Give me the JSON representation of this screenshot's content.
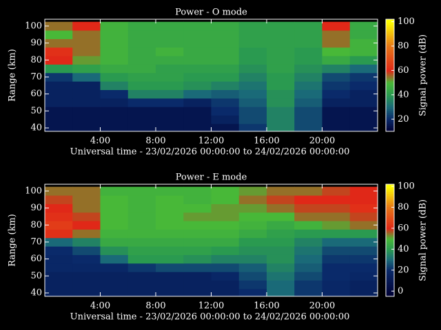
{
  "chart_data": [
    {
      "type": "heatmap",
      "title": "Power - O mode",
      "x_label": "Universal time - 23/02/2026 00:00:00 to 24/02/2026 00:00:00",
      "y_label": "Range (km)",
      "x": [
        1,
        3,
        5,
        7,
        9,
        11,
        13,
        15,
        17,
        19,
        21,
        23
      ],
      "y": [
        40,
        45,
        50,
        55,
        60,
        65,
        70,
        75,
        80,
        85,
        90,
        95,
        100
      ],
      "z": [
        [
          15,
          15,
          15,
          15,
          15,
          15,
          15,
          22,
          35,
          25,
          15,
          15
        ],
        [
          15,
          15,
          15,
          15,
          15,
          15,
          18,
          25,
          35,
          25,
          15,
          15
        ],
        [
          15,
          15,
          15,
          15,
          15,
          15,
          20,
          25,
          35,
          25,
          15,
          15
        ],
        [
          18,
          18,
          18,
          20,
          20,
          18,
          22,
          28,
          38,
          28,
          18,
          18
        ],
        [
          18,
          18,
          20,
          35,
          35,
          30,
          28,
          30,
          38,
          30,
          20,
          18
        ],
        [
          18,
          18,
          35,
          40,
          40,
          38,
          35,
          32,
          40,
          32,
          22,
          20
        ],
        [
          22,
          30,
          40,
          42,
          42,
          40,
          40,
          35,
          40,
          35,
          25,
          22
        ],
        [
          40,
          42,
          45,
          45,
          42,
          42,
          42,
          38,
          42,
          38,
          35,
          30
        ],
        [
          60,
          52,
          48,
          45,
          45,
          45,
          45,
          40,
          42,
          40,
          45,
          40
        ],
        [
          62,
          55,
          48,
          45,
          48,
          45,
          45,
          40,
          42,
          40,
          50,
          48
        ],
        [
          55,
          55,
          48,
          45,
          45,
          45,
          45,
          42,
          42,
          42,
          55,
          48
        ],
        [
          50,
          55,
          48,
          45,
          45,
          45,
          45,
          42,
          42,
          42,
          55,
          45
        ],
        [
          55,
          60,
          48,
          45,
          45,
          45,
          45,
          42,
          42,
          42,
          60,
          45
        ]
      ],
      "xlim": [
        0,
        24
      ],
      "ylim": [
        38,
        104
      ],
      "xticks": [
        {
          "value": 4,
          "label": "4:00"
        },
        {
          "value": 8,
          "label": "8:00"
        },
        {
          "value": 12,
          "label": "12:00"
        },
        {
          "value": 16,
          "label": "16:00"
        },
        {
          "value": 20,
          "label": "20:00"
        }
      ],
      "yticks": [
        40,
        50,
        60,
        70,
        80,
        90,
        100
      ],
      "colorbar": {
        "label": "Signal power (dB)",
        "lim": [
          10,
          102
        ],
        "ticks": [
          20,
          40,
          60,
          80,
          100
        ]
      },
      "colorscale": [
        [
          10,
          "#000033"
        ],
        [
          20,
          "#0a2a6a"
        ],
        [
          30,
          "#1a6a78"
        ],
        [
          40,
          "#2a9a50"
        ],
        [
          50,
          "#48b838"
        ],
        [
          60,
          "#e02818"
        ],
        [
          80,
          "#e87818"
        ],
        [
          100,
          "#ffff00"
        ]
      ]
    },
    {
      "type": "heatmap",
      "title": "Power - E mode",
      "x_label": "Universal time - 23/02/2026 00:00:00 to 24/02/2026 00:00:00",
      "y_label": "Range (km)",
      "x": [
        1,
        3,
        5,
        7,
        9,
        11,
        13,
        15,
        17,
        19,
        21,
        23
      ],
      "y": [
        40,
        45,
        50,
        55,
        60,
        65,
        70,
        75,
        80,
        85,
        90,
        95,
        100
      ],
      "z": [
        [
          15,
          15,
          15,
          15,
          15,
          15,
          15,
          20,
          30,
          22,
          18,
          15
        ],
        [
          15,
          15,
          15,
          15,
          15,
          15,
          15,
          22,
          30,
          22,
          18,
          15
        ],
        [
          15,
          15,
          15,
          15,
          15,
          15,
          18,
          25,
          32,
          25,
          20,
          18
        ],
        [
          18,
          18,
          18,
          22,
          25,
          25,
          25,
          28,
          35,
          28,
          20,
          20
        ],
        [
          18,
          20,
          30,
          40,
          40,
          38,
          35,
          35,
          38,
          30,
          22,
          22
        ],
        [
          20,
          25,
          38,
          42,
          42,
          42,
          40,
          38,
          38,
          32,
          25,
          25
        ],
        [
          30,
          35,
          45,
          45,
          45,
          45,
          45,
          40,
          40,
          35,
          30,
          30
        ],
        [
          62,
          55,
          48,
          48,
          48,
          48,
          48,
          45,
          42,
          40,
          40,
          40
        ],
        [
          65,
          60,
          50,
          48,
          50,
          50,
          50,
          48,
          45,
          48,
          52,
          55
        ],
        [
          62,
          58,
          50,
          48,
          50,
          52,
          52,
          50,
          50,
          55,
          55,
          58
        ],
        [
          60,
          55,
          50,
          48,
          50,
          50,
          52,
          52,
          55,
          58,
          58,
          62
        ],
        [
          58,
          55,
          50,
          48,
          50,
          48,
          50,
          55,
          58,
          60,
          60,
          60
        ],
        [
          55,
          55,
          48,
          48,
          48,
          48,
          50,
          52,
          55,
          55,
          58,
          60
        ]
      ],
      "xlim": [
        0,
        24
      ],
      "ylim": [
        38,
        104
      ],
      "xticks": [
        {
          "value": 4,
          "label": "4:00"
        },
        {
          "value": 8,
          "label": "8:00"
        },
        {
          "value": 12,
          "label": "12:00"
        },
        {
          "value": 16,
          "label": "16:00"
        },
        {
          "value": 20,
          "label": "20:00"
        }
      ],
      "yticks": [
        40,
        50,
        60,
        70,
        80,
        90,
        100
      ],
      "colorbar": {
        "label": "Signal power (dB)",
        "lim": [
          -5,
          102
        ],
        "ticks": [
          0,
          20,
          40,
          60,
          80,
          100
        ]
      },
      "colorscale": [
        [
          -5,
          "#000033"
        ],
        [
          20,
          "#0a2a6a"
        ],
        [
          30,
          "#1a6a78"
        ],
        [
          40,
          "#2a9a50"
        ],
        [
          50,
          "#48b838"
        ],
        [
          60,
          "#e02818"
        ],
        [
          80,
          "#e87818"
        ],
        [
          100,
          "#ffff00"
        ]
      ]
    }
  ]
}
